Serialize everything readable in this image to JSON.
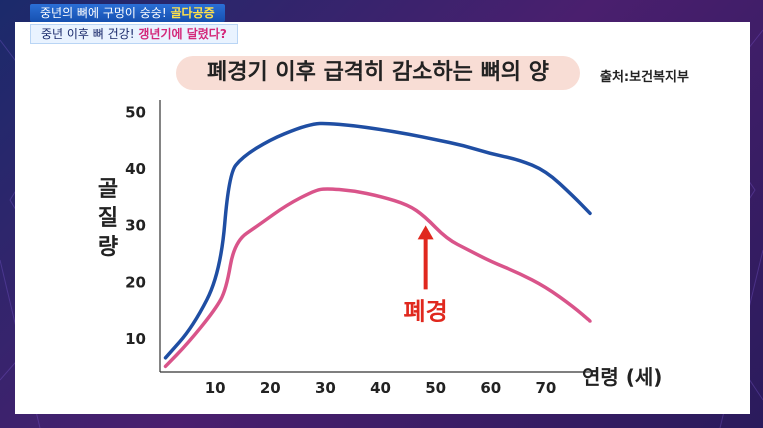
{
  "banner": {
    "line1_prefix": "중년의 뼈에 구멍이 숭숭!",
    "line1_accent": "골다공증",
    "line2_prefix": "중년 이후 뼈 건강!",
    "line2_accent": "갱년기에 달렸다?"
  },
  "chart_data": {
    "type": "line",
    "title": "폐경기 이후 급격히 감소하는 뼈의 양",
    "source": "출처:보건복지부",
    "xlabel": "연령 (세)",
    "ylabel": "골질량",
    "xticks": [
      10,
      20,
      30,
      40,
      50,
      60,
      70
    ],
    "yticks": [
      10,
      20,
      30,
      40,
      50
    ],
    "xlim": [
      0,
      78
    ],
    "ylim": [
      4,
      52
    ],
    "grid": false,
    "series": [
      {
        "color": "#1f4ea3",
        "x": [
          1,
          6,
          11,
          12.5,
          15,
          20,
          25,
          28,
          30,
          35,
          40,
          45,
          50,
          55,
          60,
          65,
          70,
          75,
          78
        ],
        "y": [
          6.5,
          12,
          21.5,
          39,
          42,
          45,
          47,
          47.8,
          47.9,
          47.5,
          46.8,
          46,
          45,
          44,
          42.5,
          41.5,
          39.5,
          35,
          32
        ]
      },
      {
        "color": "#d9548a",
        "x": [
          1,
          5,
          10,
          12,
          13.5,
          18,
          23,
          28,
          30,
          35,
          40,
          45,
          48,
          52,
          56,
          60,
          65,
          70,
          75,
          78
        ],
        "y": [
          5,
          9,
          15,
          18.5,
          27,
          30,
          33.5,
          36,
          36.4,
          36,
          35,
          33.5,
          31.5,
          27.5,
          25.5,
          23.5,
          21.5,
          19,
          15.5,
          13
        ]
      }
    ],
    "annotation": {
      "label": "폐경",
      "x": 50,
      "color": "#e0281e"
    }
  }
}
